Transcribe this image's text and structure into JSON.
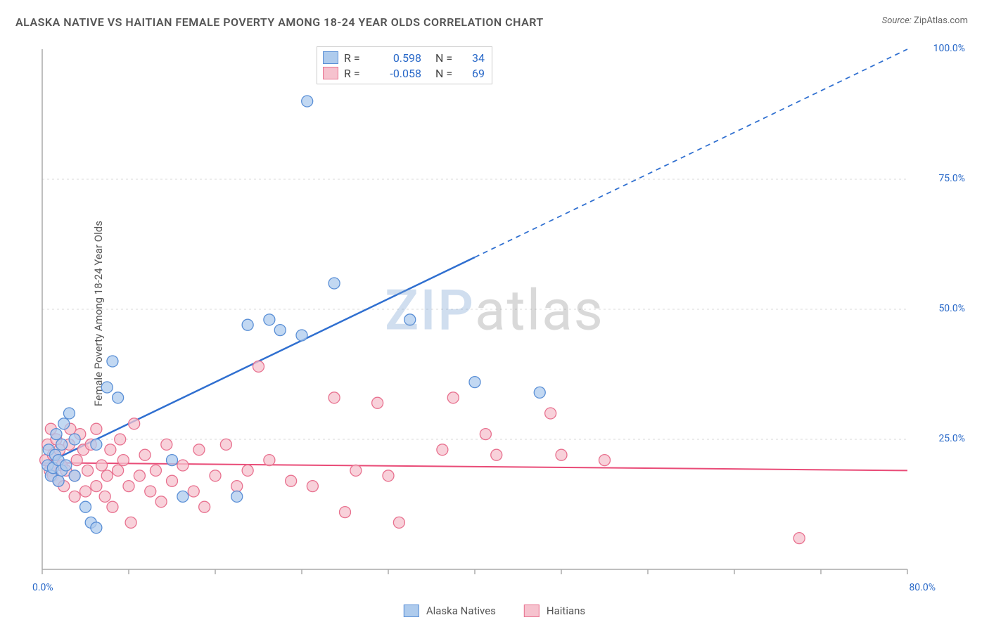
{
  "title": "ALASKA NATIVE VS HAITIAN FEMALE POVERTY AMONG 18-24 YEAR OLDS CORRELATION CHART",
  "source_label": "Source:",
  "source_value": "ZipAtlas.com",
  "ylabel": "Female Poverty Among 18-24 Year Olds",
  "watermark_a": "ZIP",
  "watermark_b": "atlas",
  "chart": {
    "type": "scatter",
    "plot_bg": "#ffffff",
    "grid_color": "#d8d8d8",
    "axis_line_color": "#aaaaaa",
    "tick_label_color": "#2868c8",
    "xlim": [
      0,
      80
    ],
    "ylim": [
      0,
      100
    ],
    "x_ticks": [
      0,
      8,
      16,
      24,
      32,
      40,
      48,
      56,
      64,
      72,
      80
    ],
    "x_tick_labels": {
      "0": "0.0%",
      "80": "80.0%"
    },
    "y_gridlines": [
      25,
      50,
      75
    ],
    "y_tick_labels": {
      "25": "25.0%",
      "50": "50.0%",
      "75": "75.0%",
      "100": "100.0%"
    },
    "marker_radius": 8,
    "marker_stroke_width": 1.3,
    "series": [
      {
        "name": "Alaska Natives",
        "fill": "#aecbed",
        "stroke": "#5a8fd6",
        "swatch_fill": "#aecbed",
        "swatch_stroke": "#5a8fd6",
        "regression": {
          "color": "#2f6fd0",
          "width": 2.5,
          "x1": 0,
          "y1": 20,
          "x2": 80,
          "y2": 100,
          "solid_until_x": 40
        },
        "stats": {
          "R_label": "R =",
          "R": "0.598",
          "N_label": "N =",
          "N": "34"
        },
        "points": [
          [
            0.5,
            20
          ],
          [
            0.6,
            23
          ],
          [
            0.8,
            18
          ],
          [
            1,
            19.5
          ],
          [
            1.2,
            22
          ],
          [
            1.3,
            26
          ],
          [
            1.5,
            17
          ],
          [
            1.5,
            21
          ],
          [
            1.8,
            19
          ],
          [
            1.8,
            24
          ],
          [
            2,
            28
          ],
          [
            2.2,
            20
          ],
          [
            2.5,
            30
          ],
          [
            3,
            18
          ],
          [
            3,
            25
          ],
          [
            4,
            12
          ],
          [
            4.5,
            9
          ],
          [
            5,
            8
          ],
          [
            5,
            24
          ],
          [
            6,
            35
          ],
          [
            6.5,
            40
          ],
          [
            7,
            33
          ],
          [
            12,
            21
          ],
          [
            13,
            14
          ],
          [
            18,
            14
          ],
          [
            19,
            47
          ],
          [
            21,
            48
          ],
          [
            22,
            46
          ],
          [
            24,
            45
          ],
          [
            24.5,
            90
          ],
          [
            27,
            55
          ],
          [
            34,
            48
          ],
          [
            40,
            36
          ],
          [
            46,
            34
          ]
        ]
      },
      {
        "name": "Haitians",
        "fill": "#f6c2ce",
        "stroke": "#e8718f",
        "swatch_fill": "#f6c2ce",
        "swatch_stroke": "#e8718f",
        "regression": {
          "color": "#e94b77",
          "width": 2,
          "x1": 0,
          "y1": 20.5,
          "x2": 80,
          "y2": 19,
          "solid_until_x": 80
        },
        "stats": {
          "R_label": "R =",
          "R": "-0.058",
          "N_label": "N =",
          "N": "69"
        },
        "points": [
          [
            0.3,
            21
          ],
          [
            0.5,
            24
          ],
          [
            0.7,
            19
          ],
          [
            0.8,
            27
          ],
          [
            1,
            18
          ],
          [
            1,
            22
          ],
          [
            1.2,
            20
          ],
          [
            1.3,
            25
          ],
          [
            1.5,
            17
          ],
          [
            1.6,
            23
          ],
          [
            1.8,
            20
          ],
          [
            2,
            16
          ],
          [
            2.2,
            19
          ],
          [
            2.5,
            24
          ],
          [
            2.6,
            27
          ],
          [
            3,
            18
          ],
          [
            3,
            14
          ],
          [
            3.2,
            21
          ],
          [
            3.5,
            26
          ],
          [
            3.8,
            23
          ],
          [
            4,
            15
          ],
          [
            4.2,
            19
          ],
          [
            4.5,
            24
          ],
          [
            5,
            16
          ],
          [
            5,
            27
          ],
          [
            5.5,
            20
          ],
          [
            5.8,
            14
          ],
          [
            6,
            18
          ],
          [
            6.3,
            23
          ],
          [
            6.5,
            12
          ],
          [
            7,
            19
          ],
          [
            7.2,
            25
          ],
          [
            7.5,
            21
          ],
          [
            8,
            16
          ],
          [
            8.2,
            9
          ],
          [
            8.5,
            28
          ],
          [
            9,
            18
          ],
          [
            9.5,
            22
          ],
          [
            10,
            15
          ],
          [
            10.5,
            19
          ],
          [
            11,
            13
          ],
          [
            11.5,
            24
          ],
          [
            12,
            17
          ],
          [
            13,
            20
          ],
          [
            14,
            15
          ],
          [
            14.5,
            23
          ],
          [
            15,
            12
          ],
          [
            16,
            18
          ],
          [
            17,
            24
          ],
          [
            18,
            16
          ],
          [
            19,
            19
          ],
          [
            20,
            39
          ],
          [
            21,
            21
          ],
          [
            23,
            17
          ],
          [
            25,
            16
          ],
          [
            27,
            33
          ],
          [
            28,
            11
          ],
          [
            29,
            19
          ],
          [
            31,
            32
          ],
          [
            32,
            18
          ],
          [
            33,
            9
          ],
          [
            37,
            23
          ],
          [
            38,
            33
          ],
          [
            41,
            26
          ],
          [
            42,
            22
          ],
          [
            47,
            30
          ],
          [
            48,
            22
          ],
          [
            52,
            21
          ],
          [
            70,
            6
          ]
        ]
      }
    ]
  },
  "legend_bottom": [
    {
      "label": "Alaska Natives",
      "fill": "#aecbed",
      "stroke": "#5a8fd6"
    },
    {
      "label": "Haitians",
      "fill": "#f6c2ce",
      "stroke": "#e8718f"
    }
  ]
}
